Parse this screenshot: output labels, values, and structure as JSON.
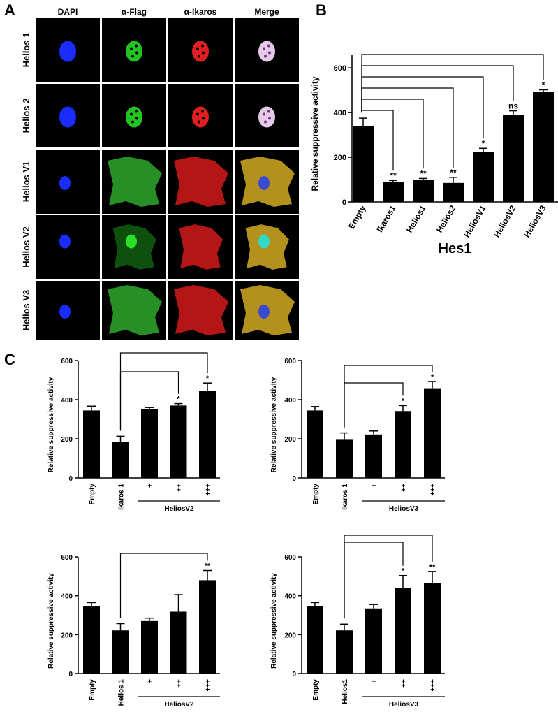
{
  "labels": {
    "a": "A",
    "b": "B",
    "c": "C"
  },
  "panel_a": {
    "columns": [
      "DAPI",
      "α-Flag",
      "α-Ikaros",
      "Merge"
    ],
    "rows": [
      "Helios 1",
      "Helios 2",
      "Helios V1",
      "Helios V2",
      "Helios V3"
    ]
  },
  "chart_data": [
    {
      "type": "bar",
      "y_label": "Relative suppressive activity",
      "x_label": "Hes1",
      "categories": [
        "Empty",
        "Ikaros1",
        "Helios1",
        "Helios2",
        "HeliosV1",
        "HeliosV2",
        "HeliosV3"
      ],
      "values": [
        340,
        90,
        97,
        85,
        225,
        388,
        492
      ],
      "errors": [
        35,
        6,
        8,
        25,
        15,
        20,
        10
      ],
      "annotations": [
        null,
        "**",
        "**",
        "**",
        "*",
        "ns",
        "*"
      ],
      "color": "#000000",
      "ylim": [
        0,
        660
      ],
      "yticks": [
        0,
        200,
        400,
        600
      ]
    },
    {
      "type": "bar",
      "y_label": "Relative suppressive activity",
      "group_label": "HeliosV2",
      "categories": [
        "Empty",
        "Ikaros 1",
        "+",
        "++",
        "+++"
      ],
      "values": [
        345,
        183,
        350,
        370,
        445
      ],
      "errors": [
        22,
        30,
        10,
        10,
        40
      ],
      "annotations": [
        null,
        null,
        null,
        "*",
        "*"
      ],
      "color": "#000000",
      "ylim": [
        0,
        600
      ],
      "yticks": [
        0,
        200,
        400,
        600
      ]
    },
    {
      "type": "bar",
      "y_label": "Relative suppressive activity",
      "group_label": "HeliosV3",
      "categories": [
        "Empty",
        "Ikaros 1",
        "+",
        "++",
        "+++"
      ],
      "values": [
        345,
        195,
        222,
        342,
        455
      ],
      "errors": [
        20,
        35,
        18,
        28,
        38
      ],
      "annotations": [
        null,
        null,
        null,
        "*",
        "*"
      ],
      "color": "#000000",
      "ylim": [
        0,
        600
      ],
      "yticks": [
        0,
        200,
        400,
        600
      ]
    },
    {
      "type": "bar",
      "y_label": "Relative suppressive activity",
      "group_label": "HeliosV2",
      "categories": [
        "Empty",
        "Helios 1",
        "+",
        "++",
        "+++"
      ],
      "values": [
        345,
        222,
        270,
        318,
        480
      ],
      "errors": [
        20,
        35,
        15,
        88,
        50
      ],
      "annotations": [
        null,
        null,
        null,
        null,
        "**"
      ],
      "color": "#000000",
      "ylim": [
        0,
        600
      ],
      "yticks": [
        0,
        200,
        400,
        600
      ]
    },
    {
      "type": "bar",
      "y_label": "Relative suppressive activity",
      "group_label": "HeliosV3",
      "categories": [
        "Empty",
        "Helios1",
        "+",
        "++",
        "+++"
      ],
      "values": [
        345,
        222,
        335,
        442,
        465
      ],
      "errors": [
        20,
        32,
        20,
        62,
        60
      ],
      "annotations": [
        null,
        null,
        null,
        "*",
        "**"
      ],
      "color": "#000000",
      "ylim": [
        0,
        600
      ],
      "yticks": [
        0,
        200,
        400,
        600
      ]
    }
  ]
}
